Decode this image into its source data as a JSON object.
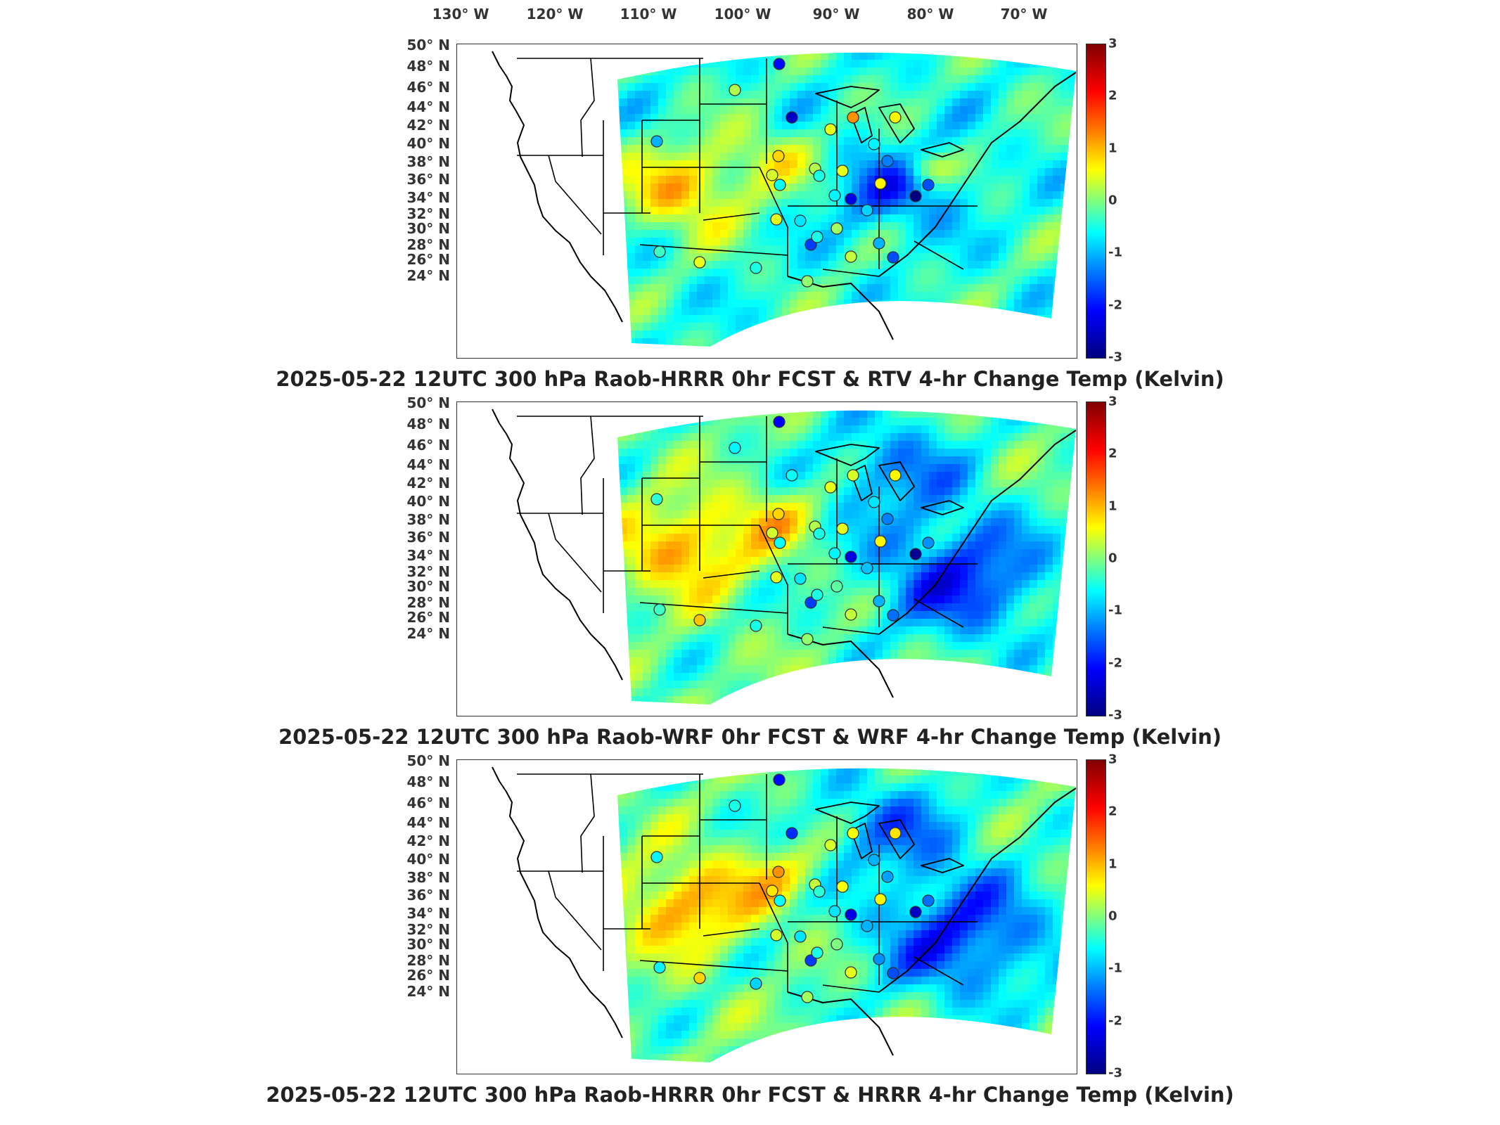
{
  "lon_labels": [
    "130° W",
    "120° W",
    "110° W",
    "100° W",
    "90° W",
    "80° W",
    "70° W"
  ],
  "lat_labels": [
    "50° N",
    "48° N",
    "46° N",
    "44° N",
    "42° N",
    "40° N",
    "38° N",
    "36° N",
    "34° N",
    "32° N",
    "30° N",
    "28° N",
    "26° N",
    "24° N"
  ],
  "colorbar": {
    "ticks": [
      "3",
      "2",
      "1",
      "0",
      "-1",
      "-2",
      "-3"
    ],
    "range": [
      -3,
      3
    ],
    "colormap": "jet"
  },
  "colors": {
    "land_outline": "#000000",
    "station_outline": "#333333"
  },
  "panels": [
    {
      "title": "2025-05-22 12UTC 300 hPa Raob-HRRR 0hr FCST & RTV 4-hr Change Temp (Kelvin)"
    },
    {
      "title": "2025-05-22 12UTC 300 hPa Raob-WRF 0hr FCST & WRF 4-hr Change Temp (Kelvin)"
    },
    {
      "title": "2025-05-22 12UTC 300 hPa Raob-HRRR 0hr FCST & HRRR 4-hr Change Temp (Kelvin)"
    }
  ],
  "stations": {
    "panel_1": [
      -2.2,
      0.3,
      -1.2,
      1.4,
      0.8,
      -2.6,
      -0.8,
      0.6,
      1.0,
      -1.5,
      0.6,
      0.3,
      -0.6,
      0.5,
      0.8,
      -0.7,
      -3.0,
      -1.8,
      -0.8,
      0.6,
      -0.9,
      0.6,
      -0.4,
      -0.6,
      -2.4,
      -1.0,
      -1.2,
      -1.8,
      -1.9,
      -0.6,
      0.2,
      0.1,
      0.4
    ],
    "panel_2": [
      -2.3,
      -0.8,
      -0.5,
      0.5,
      0.8,
      -0.7,
      -0.9,
      0.6,
      1.0,
      -1.5,
      0.6,
      0.3,
      -0.6,
      0.5,
      0.8,
      -0.7,
      -2.9,
      -1.4,
      -0.8,
      0.6,
      -0.9,
      1.1,
      -0.4,
      -0.6,
      -2.4,
      -1.1,
      -1.2,
      -1.6,
      -1.9,
      -0.6,
      -0.2,
      0.1,
      0.4
    ],
    "panel_3": [
      -2.2,
      -0.6,
      -0.8,
      0.7,
      0.9,
      -2.0,
      -1.2,
      0.5,
      1.4,
      -1.3,
      0.7,
      0.4,
      -0.5,
      0.9,
      0.8,
      -0.7,
      -2.6,
      -1.6,
      -0.9,
      0.5,
      -0.9,
      1.0,
      -0.8,
      -1.0,
      -2.4,
      -1.2,
      -1.4,
      -1.8,
      -1.9,
      -0.6,
      0.0,
      0.2,
      0.6
    ]
  }
}
